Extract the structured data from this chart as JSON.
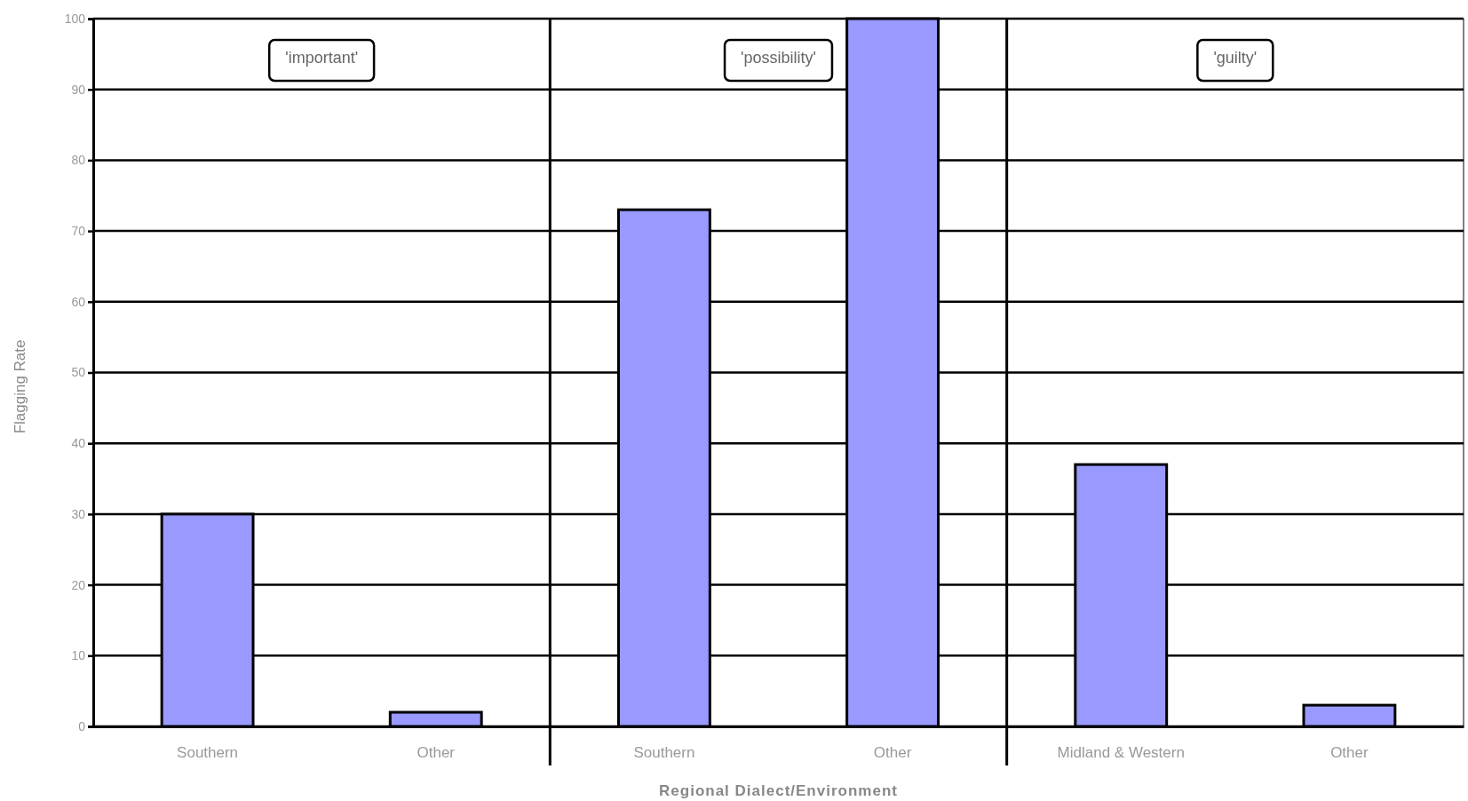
{
  "chart_data": {
    "type": "bar",
    "xlabel": "Regional Dialect/Environment",
    "ylabel": "Flagging Rate",
    "categories": [
      "Southern",
      "Other",
      "Southern",
      "Other",
      "Midland & Western",
      "Other"
    ],
    "values": [
      30,
      2,
      73,
      100,
      37,
      3
    ],
    "colors": [
      "#9999ff",
      "#9999ff",
      "#9999ff",
      "#9999ff",
      "#9999ff",
      "#9999ff"
    ],
    "ylim": [
      0,
      100
    ],
    "yticks": [
      0,
      10,
      20,
      30,
      40,
      50,
      60,
      70,
      80,
      90,
      100
    ],
    "grid": "y",
    "annotations": [
      "'important'",
      "'possibility'",
      "'guilty'"
    ]
  }
}
